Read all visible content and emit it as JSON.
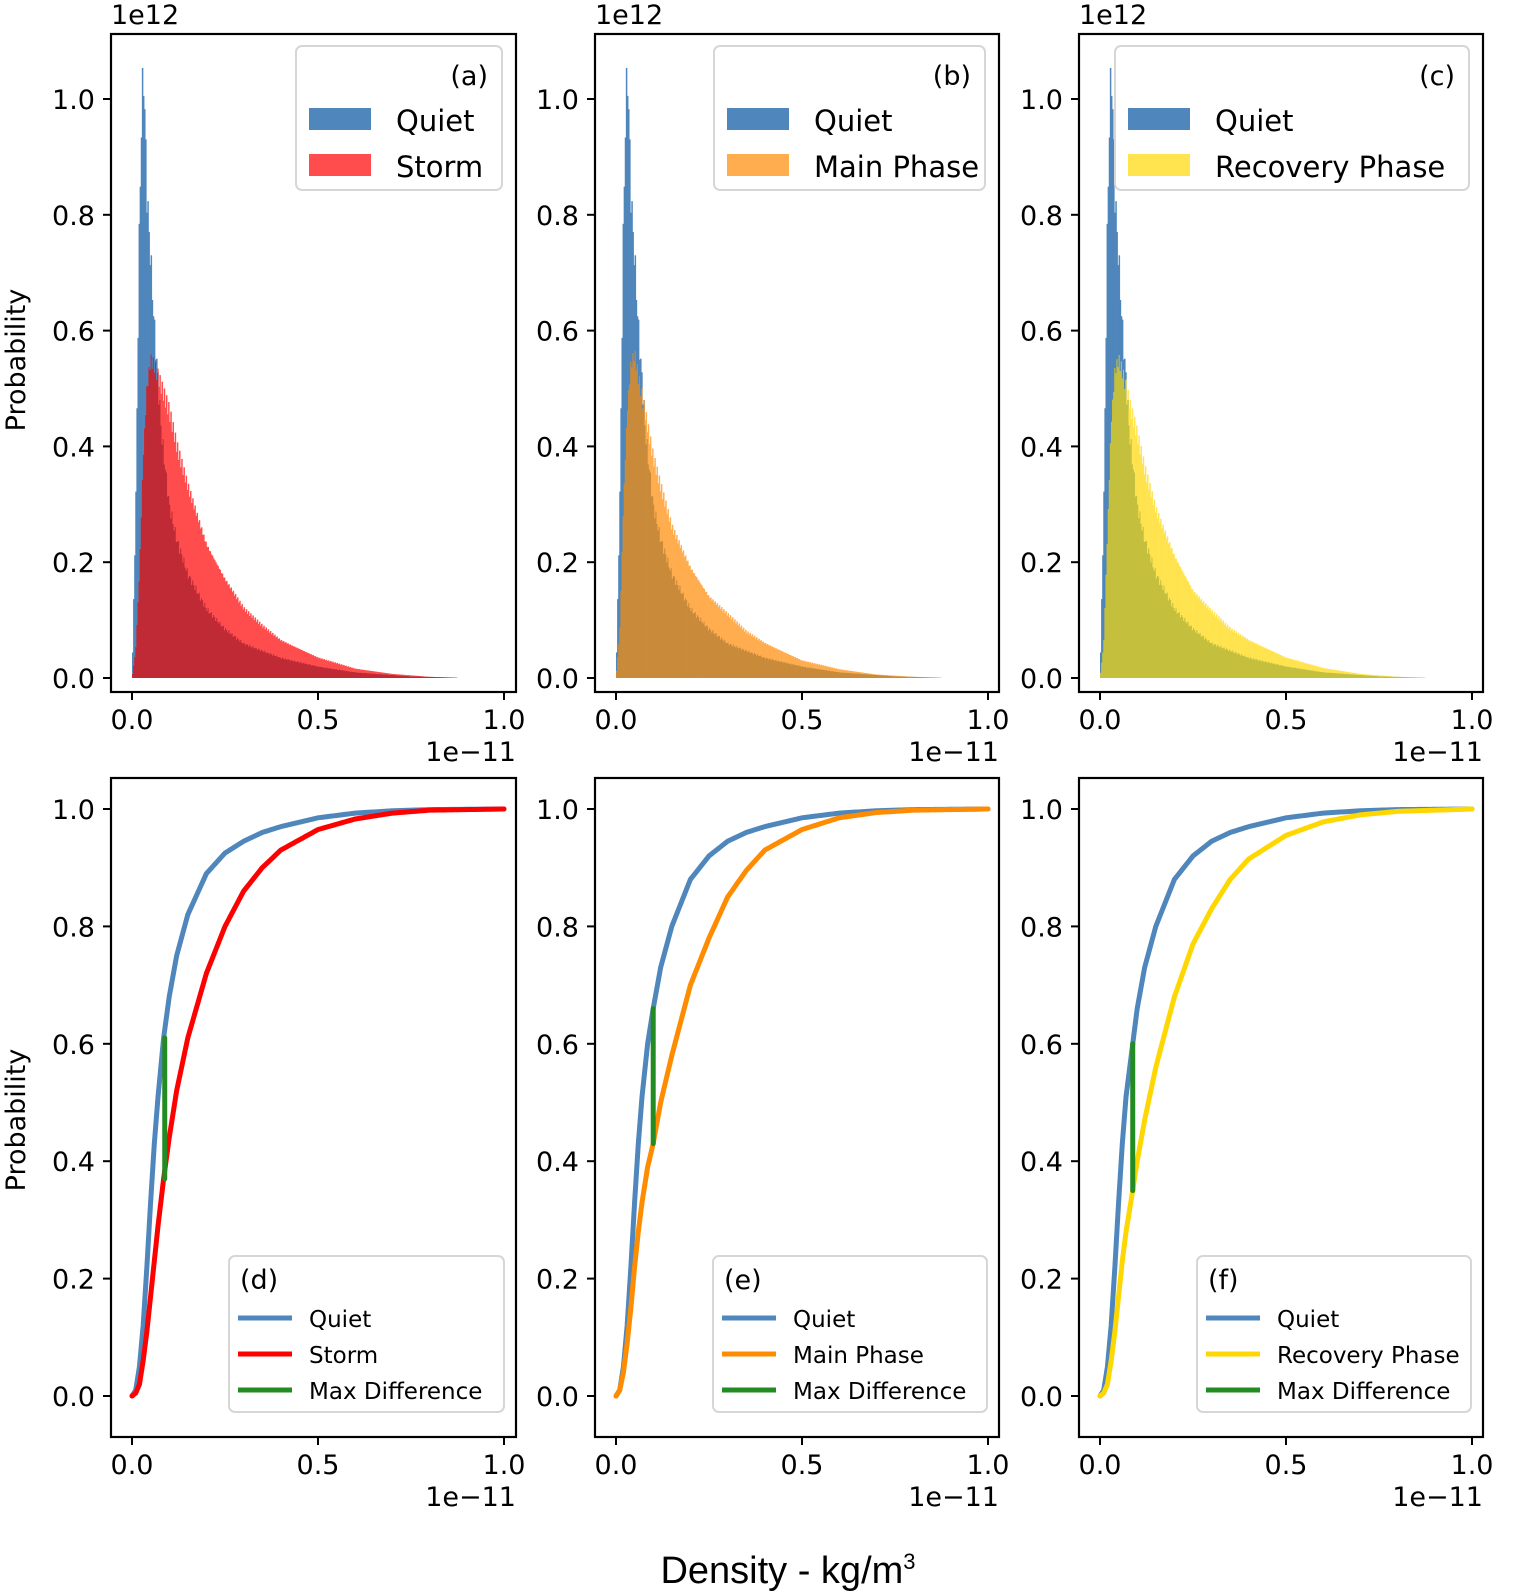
{
  "figure": {
    "xlabel": "Density - kg/m",
    "xlabel_sup": "3",
    "ylabel": "Probability"
  },
  "colors": {
    "quiet": "#4f86bb",
    "storm_hist": "#ff4d4d",
    "storm_hist_overlap": "#c02a35",
    "main_hist": "#ffad4f",
    "main_hist_overlap": "#c98b3a",
    "recovery_hist": "#ffe34f",
    "recovery_hist_overlap": "#c4c03e",
    "storm_line": "#ff0000",
    "main_line": "#ff8c00",
    "recovery_line": "#ffd700",
    "max_diff": "#228b22"
  },
  "chart_data": [
    {
      "type": "histogram",
      "panel": "(a)",
      "x_exponent": "1e−11",
      "y_exponent": "1e12",
      "xlim": [
        0,
        1.0
      ],
      "ylim": [
        0,
        1.1
      ],
      "xticks": [
        "0.0",
        "0.5",
        "1.0"
      ],
      "yticks": [
        "0.0",
        "0.2",
        "0.4",
        "0.6",
        "0.8",
        "1.0"
      ],
      "legend": [
        "Quiet",
        "Storm"
      ],
      "series": [
        {
          "name": "Quiet",
          "x": [
            0.0,
            0.01,
            0.02,
            0.025,
            0.03,
            0.035,
            0.04,
            0.05,
            0.06,
            0.08,
            0.1,
            0.12,
            0.15,
            0.2,
            0.25,
            0.3,
            0.4,
            0.5,
            0.6,
            0.75,
            0.9
          ],
          "y": [
            0.0,
            0.3,
            0.8,
            0.95,
            1.06,
            0.95,
            0.83,
            0.72,
            0.6,
            0.42,
            0.3,
            0.24,
            0.18,
            0.12,
            0.085,
            0.06,
            0.035,
            0.02,
            0.01,
            0.003,
            0.0
          ]
        },
        {
          "name": "Storm",
          "x": [
            0.0,
            0.01,
            0.02,
            0.03,
            0.04,
            0.05,
            0.06,
            0.08,
            0.1,
            0.12,
            0.15,
            0.2,
            0.25,
            0.3,
            0.35,
            0.4,
            0.5,
            0.6,
            0.7,
            0.8,
            0.9
          ],
          "y": [
            0.0,
            0.05,
            0.18,
            0.38,
            0.5,
            0.55,
            0.54,
            0.5,
            0.46,
            0.4,
            0.33,
            0.23,
            0.17,
            0.12,
            0.09,
            0.065,
            0.035,
            0.016,
            0.007,
            0.002,
            0.0
          ]
        }
      ]
    },
    {
      "type": "histogram",
      "panel": "(b)",
      "x_exponent": "1e−11",
      "y_exponent": "1e12",
      "xlim": [
        0,
        1.0
      ],
      "ylim": [
        0,
        1.1
      ],
      "xticks": [
        "0.0",
        "0.5",
        "1.0"
      ],
      "yticks": [
        "0.0",
        "0.2",
        "0.4",
        "0.6",
        "0.8",
        "1.0"
      ],
      "legend": [
        "Quiet",
        "Main Phase"
      ],
      "series": [
        {
          "name": "Quiet",
          "x": [
            0.0,
            0.01,
            0.02,
            0.025,
            0.03,
            0.035,
            0.04,
            0.05,
            0.06,
            0.08,
            0.1,
            0.12,
            0.15,
            0.2,
            0.25,
            0.3,
            0.4,
            0.5,
            0.6,
            0.75,
            0.9
          ],
          "y": [
            0.0,
            0.3,
            0.8,
            0.95,
            1.06,
            0.95,
            0.83,
            0.72,
            0.6,
            0.42,
            0.3,
            0.24,
            0.18,
            0.12,
            0.085,
            0.06,
            0.035,
            0.02,
            0.01,
            0.003,
            0.0
          ]
        },
        {
          "name": "Main Phase",
          "x": [
            0.0,
            0.01,
            0.02,
            0.03,
            0.04,
            0.05,
            0.06,
            0.08,
            0.1,
            0.12,
            0.15,
            0.2,
            0.25,
            0.3,
            0.35,
            0.4,
            0.5,
            0.6,
            0.7,
            0.8,
            0.9
          ],
          "y": [
            0.0,
            0.08,
            0.3,
            0.46,
            0.54,
            0.56,
            0.52,
            0.45,
            0.38,
            0.33,
            0.26,
            0.19,
            0.14,
            0.11,
            0.08,
            0.06,
            0.03,
            0.015,
            0.006,
            0.002,
            0.0
          ]
        }
      ]
    },
    {
      "type": "histogram",
      "panel": "(c)",
      "x_exponent": "1e−11",
      "y_exponent": "1e12",
      "xlim": [
        0,
        1.0
      ],
      "ylim": [
        0,
        1.1
      ],
      "xticks": [
        "0.0",
        "0.5",
        "1.0"
      ],
      "yticks": [
        "0.0",
        "0.2",
        "0.4",
        "0.6",
        "0.8",
        "1.0"
      ],
      "legend": [
        "Quiet",
        "Recovery Phase"
      ],
      "series": [
        {
          "name": "Quiet",
          "x": [
            0.0,
            0.01,
            0.02,
            0.025,
            0.03,
            0.035,
            0.04,
            0.05,
            0.06,
            0.08,
            0.1,
            0.12,
            0.15,
            0.2,
            0.25,
            0.3,
            0.4,
            0.5,
            0.6,
            0.75,
            0.9
          ],
          "y": [
            0.0,
            0.3,
            0.8,
            0.95,
            1.06,
            0.95,
            0.83,
            0.72,
            0.6,
            0.42,
            0.3,
            0.24,
            0.18,
            0.12,
            0.085,
            0.06,
            0.035,
            0.02,
            0.01,
            0.003,
            0.0
          ]
        },
        {
          "name": "Recovery Phase",
          "x": [
            0.0,
            0.01,
            0.02,
            0.03,
            0.04,
            0.05,
            0.06,
            0.08,
            0.1,
            0.12,
            0.15,
            0.2,
            0.25,
            0.3,
            0.35,
            0.4,
            0.5,
            0.6,
            0.7,
            0.8,
            0.9
          ],
          "y": [
            0.0,
            0.06,
            0.25,
            0.44,
            0.53,
            0.55,
            0.53,
            0.47,
            0.42,
            0.36,
            0.29,
            0.21,
            0.15,
            0.115,
            0.085,
            0.065,
            0.035,
            0.017,
            0.007,
            0.002,
            0.0
          ]
        }
      ]
    },
    {
      "type": "line",
      "panel": "(d)",
      "x_exponent": "1e−11",
      "xlim": [
        0,
        1.0
      ],
      "ylim": [
        0,
        1.0
      ],
      "xticks": [
        "0.0",
        "0.5",
        "1.0"
      ],
      "yticks": [
        "0.0",
        "0.2",
        "0.4",
        "0.6",
        "0.8",
        "1.0"
      ],
      "legend": [
        "Quiet",
        "Storm",
        "Max Difference"
      ],
      "series": [
        {
          "name": "Quiet",
          "x": [
            0.0,
            0.01,
            0.02,
            0.03,
            0.04,
            0.05,
            0.06,
            0.07,
            0.085,
            0.1,
            0.12,
            0.15,
            0.2,
            0.25,
            0.3,
            0.35,
            0.4,
            0.5,
            0.6,
            0.7,
            0.8,
            1.0
          ],
          "y": [
            0.0,
            0.01,
            0.05,
            0.12,
            0.22,
            0.33,
            0.43,
            0.51,
            0.61,
            0.68,
            0.75,
            0.82,
            0.89,
            0.925,
            0.945,
            0.96,
            0.97,
            0.985,
            0.993,
            0.997,
            0.999,
            1.0
          ]
        },
        {
          "name": "Storm",
          "x": [
            0.0,
            0.01,
            0.02,
            0.03,
            0.04,
            0.05,
            0.06,
            0.07,
            0.085,
            0.1,
            0.12,
            0.15,
            0.2,
            0.25,
            0.3,
            0.35,
            0.4,
            0.5,
            0.6,
            0.7,
            0.8,
            1.0
          ],
          "y": [
            0.0,
            0.005,
            0.02,
            0.06,
            0.11,
            0.17,
            0.23,
            0.29,
            0.37,
            0.44,
            0.52,
            0.61,
            0.72,
            0.8,
            0.86,
            0.9,
            0.93,
            0.965,
            0.983,
            0.993,
            0.998,
            1.0
          ]
        },
        {
          "name": "Max Difference",
          "x": [
            0.088,
            0.088
          ],
          "y": [
            0.37,
            0.61
          ]
        }
      ]
    },
    {
      "type": "line",
      "panel": "(e)",
      "x_exponent": "1e−11",
      "xlim": [
        0,
        1.0
      ],
      "ylim": [
        0,
        1.0
      ],
      "xticks": [
        "0.0",
        "0.5",
        "1.0"
      ],
      "yticks": [
        "0.0",
        "0.2",
        "0.4",
        "0.6",
        "0.8",
        "1.0"
      ],
      "legend": [
        "Quiet",
        "Main Phase",
        "Max Difference"
      ],
      "series": [
        {
          "name": "Quiet",
          "x": [
            0.0,
            0.01,
            0.02,
            0.03,
            0.04,
            0.05,
            0.06,
            0.07,
            0.085,
            0.1,
            0.12,
            0.15,
            0.2,
            0.25,
            0.3,
            0.35,
            0.4,
            0.5,
            0.6,
            0.7,
            0.8,
            1.0
          ],
          "y": [
            0.0,
            0.01,
            0.05,
            0.12,
            0.22,
            0.33,
            0.43,
            0.51,
            0.6,
            0.66,
            0.73,
            0.8,
            0.88,
            0.92,
            0.945,
            0.96,
            0.97,
            0.985,
            0.993,
            0.997,
            0.999,
            1.0
          ]
        },
        {
          "name": "Main Phase",
          "x": [
            0.0,
            0.01,
            0.02,
            0.03,
            0.04,
            0.05,
            0.06,
            0.07,
            0.085,
            0.1,
            0.12,
            0.15,
            0.2,
            0.25,
            0.3,
            0.35,
            0.4,
            0.5,
            0.6,
            0.7,
            0.8,
            1.0
          ],
          "y": [
            0.0,
            0.01,
            0.04,
            0.09,
            0.15,
            0.22,
            0.28,
            0.33,
            0.39,
            0.43,
            0.5,
            0.58,
            0.7,
            0.78,
            0.85,
            0.895,
            0.93,
            0.965,
            0.985,
            0.994,
            0.998,
            1.0
          ]
        },
        {
          "name": "Max Difference",
          "x": [
            0.1,
            0.1
          ],
          "y": [
            0.43,
            0.66
          ]
        }
      ]
    },
    {
      "type": "line",
      "panel": "(f)",
      "x_exponent": "1e−11",
      "xlim": [
        0,
        1.0
      ],
      "ylim": [
        0,
        1.0
      ],
      "xticks": [
        "0.0",
        "0.5",
        "1.0"
      ],
      "yticks": [
        "0.0",
        "0.2",
        "0.4",
        "0.6",
        "0.8",
        "1.0"
      ],
      "legend": [
        "Quiet",
        "Recovery Phase",
        "Max Difference"
      ],
      "series": [
        {
          "name": "Quiet",
          "x": [
            0.0,
            0.01,
            0.02,
            0.03,
            0.04,
            0.05,
            0.06,
            0.07,
            0.088,
            0.1,
            0.12,
            0.15,
            0.2,
            0.25,
            0.3,
            0.35,
            0.4,
            0.5,
            0.6,
            0.7,
            0.8,
            1.0
          ],
          "y": [
            0.0,
            0.01,
            0.05,
            0.12,
            0.22,
            0.33,
            0.43,
            0.51,
            0.6,
            0.66,
            0.73,
            0.8,
            0.88,
            0.92,
            0.945,
            0.96,
            0.97,
            0.985,
            0.993,
            0.997,
            0.999,
            1.0
          ]
        },
        {
          "name": "Recovery Phase",
          "x": [
            0.0,
            0.01,
            0.02,
            0.03,
            0.04,
            0.05,
            0.06,
            0.07,
            0.088,
            0.1,
            0.12,
            0.15,
            0.2,
            0.25,
            0.3,
            0.35,
            0.4,
            0.5,
            0.6,
            0.7,
            0.8,
            1.0
          ],
          "y": [
            0.0,
            0.005,
            0.02,
            0.06,
            0.11,
            0.17,
            0.23,
            0.28,
            0.35,
            0.4,
            0.47,
            0.56,
            0.68,
            0.77,
            0.83,
            0.88,
            0.915,
            0.955,
            0.978,
            0.99,
            0.996,
            1.0
          ]
        },
        {
          "name": "Max Difference",
          "x": [
            0.088,
            0.088
          ],
          "y": [
            0.35,
            0.6
          ]
        }
      ]
    }
  ]
}
